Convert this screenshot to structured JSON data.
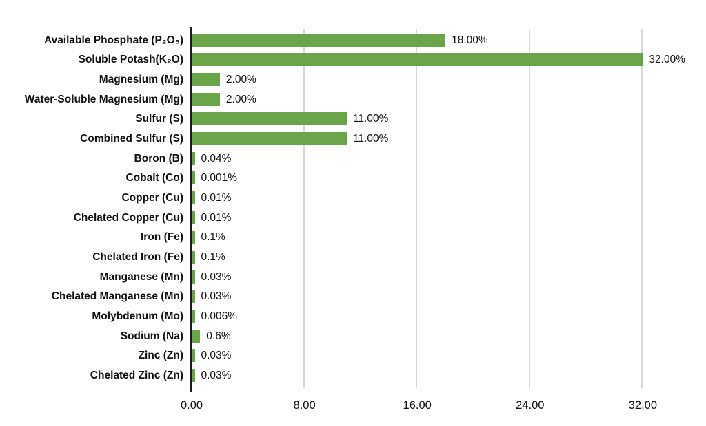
{
  "chart": {
    "background_color": "#ffffff",
    "bar_color": "#6aa649",
    "gridline_color": "#d8d8d8",
    "axis_color": "#1c1c1c",
    "text_color": "#121212"
  },
  "chart_data": {
    "type": "bar",
    "orientation": "horizontal",
    "title": "",
    "xlabel": "",
    "ylabel": "",
    "legend": "none",
    "grid": "vertical",
    "xlim": [
      0,
      32
    ],
    "x_ticks": [
      {
        "value": 0,
        "label": "0.00"
      },
      {
        "value": 8,
        "label": "8.00"
      },
      {
        "value": 16,
        "label": "16.00"
      },
      {
        "value": 24,
        "label": "24.00"
      },
      {
        "value": 32,
        "label": "32.00"
      }
    ],
    "categories": [
      "Available Phosphate (P₂O₅)",
      "Soluble Potash(K₂O)",
      "Magnesium (Mg)",
      "Water-Soluble Magnesium (Mg)",
      "Sulfur (S)",
      "Combined Sulfur (S)",
      "Boron (B)",
      "Cobalt (Co)",
      "Copper (Cu)",
      "Chelated Copper (Cu)",
      "Iron (Fe)",
      "Chelated Iron (Fe)",
      "Manganese (Mn)",
      "Chelated Manganese (Mn)",
      "Molybdenum (Mo)",
      "Sodium (Na)",
      "Zinc (Zn)",
      "Chelated Zinc (Zn)"
    ],
    "values": [
      18,
      32,
      2,
      2,
      11,
      11,
      0.04,
      0.001,
      0.01,
      0.01,
      0.1,
      0.1,
      0.03,
      0.03,
      0.006,
      0.6,
      0.03,
      0.03
    ],
    "value_labels": [
      "18.00%",
      "32.00%",
      "2.00%",
      "2.00%",
      "11.00%",
      "11.00%",
      "0.04%",
      "0.001%",
      "0.01%",
      "0.01%",
      "0.1%",
      "0.1%",
      "0.03%",
      "0.03%",
      "0.006%",
      "0.6%",
      "0.03%",
      "0.03%"
    ]
  }
}
